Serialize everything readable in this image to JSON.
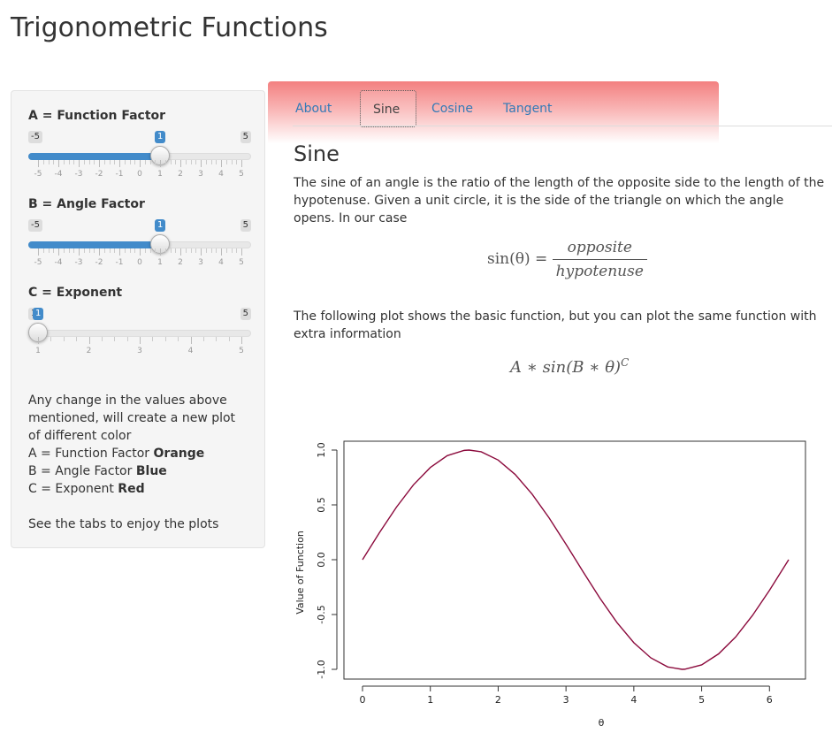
{
  "app": {
    "title": "Trigonometric Functions"
  },
  "sliders": [
    {
      "label": "A = Function Factor",
      "min": -5,
      "max": 5,
      "value": 1,
      "min_label": "-5",
      "max_label": "5",
      "value_label": "1",
      "tick_labels": [
        "-5",
        "-4",
        "-3",
        "-2",
        "-1",
        "0",
        "1",
        "2",
        "3",
        "4",
        "5"
      ],
      "filled": true
    },
    {
      "label": "B = Angle Factor",
      "min": -5,
      "max": 5,
      "value": 1,
      "min_label": "-5",
      "max_label": "5",
      "value_label": "1",
      "tick_labels": [
        "-5",
        "-4",
        "-3",
        "-2",
        "-1",
        "0",
        "1",
        "2",
        "3",
        "4",
        "5"
      ],
      "filled": true
    },
    {
      "label": "C = Exponent",
      "min": 1,
      "max": 5,
      "value": 1,
      "min_label": "1",
      "max_label": "5",
      "value_label": "1",
      "tick_labels": [
        "1",
        "2",
        "3",
        "4",
        "5"
      ],
      "filled": false
    }
  ],
  "sidebar_text": {
    "intro": "Any change in the values above mentioned, will create a new plot of different color",
    "line_a_prefix": "A = Function Factor ",
    "line_a_color": "Orange",
    "line_b_prefix": "B = Angle Factor ",
    "line_b_color": "Blue",
    "line_c_prefix": "C = Exponent ",
    "line_c_color": "Red",
    "footer": "See the tabs to enjoy the plots"
  },
  "tabs": [
    {
      "label": "About",
      "active": false
    },
    {
      "label": "Sine",
      "active": true
    },
    {
      "label": "Cosine",
      "active": false
    },
    {
      "label": "Tangent",
      "active": false
    }
  ],
  "content": {
    "heading": "Sine",
    "paragraph1": "The sine of an angle is the ratio of the length of the opposite side to the length of the hypotenuse. Given a unit circle, it is the side of the triangle on which the angle opens. In our case",
    "formula1": {
      "lhs": "sin(θ) =",
      "numerator": "opposite",
      "denominator": "hypotenuse"
    },
    "paragraph2": "The following plot shows the basic function, but you can plot the same function with extra information",
    "formula2": {
      "text": "A ∗ sin(B ∗ θ)",
      "exponent": "C"
    }
  },
  "chart_data": {
    "type": "line",
    "title": "",
    "xlabel": "θ",
    "ylabel": "Value of Function",
    "function": "sin(x)",
    "xlim": [
      0,
      6.283
    ],
    "ylim": [
      -1.0,
      1.0
    ],
    "x_ticks": [
      0,
      1,
      2,
      3,
      4,
      5,
      6
    ],
    "x_tick_labels": [
      "0",
      "1",
      "2",
      "3",
      "4",
      "5",
      "6"
    ],
    "y_ticks": [
      -1.0,
      -0.5,
      0.0,
      0.5,
      1.0
    ],
    "y_tick_labels": [
      "-1.0",
      "-0.5",
      "0.0",
      "0.5",
      "1.0"
    ],
    "series": [
      {
        "color": "#8b0a3c",
        "x": [
          0,
          0.25,
          0.5,
          0.75,
          1,
          1.25,
          1.5,
          1.571,
          1.75,
          2,
          2.25,
          2.5,
          2.75,
          3,
          3.142,
          3.25,
          3.5,
          3.75,
          4,
          4.25,
          4.5,
          4.712,
          4.75,
          5,
          5.25,
          5.5,
          5.75,
          6,
          6.283
        ],
        "y": [
          0,
          0.247,
          0.479,
          0.682,
          0.841,
          0.949,
          0.997,
          1,
          0.984,
          0.909,
          0.778,
          0.598,
          0.382,
          0.141,
          0,
          -0.108,
          -0.351,
          -0.572,
          -0.757,
          -0.895,
          -0.978,
          -1,
          -0.999,
          -0.959,
          -0.859,
          -0.706,
          -0.508,
          -0.279,
          0
        ]
      }
    ],
    "grid": false,
    "legend": "none"
  }
}
